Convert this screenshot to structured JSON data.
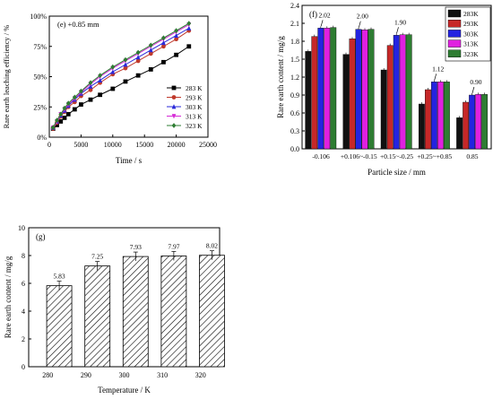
{
  "chart_data": [
    {
      "panel": "(e)",
      "type": "line",
      "title": "(e) +0.85 mm",
      "xlabel": "Time / s",
      "ylabel": "Rare earth leaching efficiency / %",
      "xlim": [
        0,
        25000
      ],
      "ylim": [
        0,
        100
      ],
      "xticks": [
        "0",
        "5000",
        "10000",
        "15000",
        "20000",
        "25000"
      ],
      "yticks": [
        "0%",
        "25%",
        "50%",
        "75%",
        "100%"
      ],
      "legend_position": "bottom-right",
      "series": [
        {
          "name": "283 K",
          "color": "#000000",
          "marker": "square",
          "x": [
            600,
            1200,
            1800,
            2400,
            3000,
            4000,
            5000,
            6500,
            8000,
            10000,
            12000,
            14000,
            16000,
            18000,
            20000,
            22000
          ],
          "y": [
            7,
            10,
            13,
            16,
            19,
            23,
            27,
            31,
            35,
            40,
            46,
            51,
            56,
            62,
            68,
            75
          ]
        },
        {
          "name": "293 K",
          "color": "#c0392b",
          "marker": "circle",
          "x": [
            600,
            1200,
            1800,
            2400,
            3000,
            4000,
            5000,
            6500,
            8000,
            10000,
            12000,
            14000,
            16000,
            18000,
            20000,
            22000
          ],
          "y": [
            7,
            12,
            17,
            21,
            25,
            29,
            34,
            39,
            45,
            52,
            57,
            63,
            69,
            75,
            81,
            88
          ]
        },
        {
          "name": "303 K",
          "color": "#2a2ad9",
          "marker": "triangle-up",
          "x": [
            600,
            1200,
            1800,
            2400,
            3000,
            4000,
            5000,
            6500,
            8000,
            10000,
            12000,
            14000,
            16000,
            18000,
            20000,
            22000
          ],
          "y": [
            8,
            13,
            18,
            22,
            26,
            31,
            36,
            42,
            47,
            54,
            60,
            66,
            72,
            78,
            84,
            90
          ]
        },
        {
          "name": "313 K",
          "color": "#d62ad6",
          "marker": "triangle-down",
          "x": [
            600,
            1200,
            1800,
            2400,
            3000,
            4000,
            5000,
            6500,
            8000,
            10000,
            12000,
            14000,
            16000,
            18000,
            20000,
            22000
          ],
          "y": [
            8,
            13,
            19,
            23,
            27,
            32,
            37,
            44,
            50,
            57,
            63,
            69,
            75,
            81,
            87,
            93
          ]
        },
        {
          "name": "323 K",
          "color": "#2e7d32",
          "marker": "diamond",
          "x": [
            600,
            1200,
            1800,
            2400,
            3000,
            4000,
            5000,
            6500,
            8000,
            10000,
            12000,
            14000,
            16000,
            18000,
            20000,
            22000
          ],
          "y": [
            8,
            14,
            19,
            24,
            28,
            33,
            38,
            45,
            51,
            58,
            64,
            70,
            76,
            82,
            88,
            94
          ]
        }
      ]
    },
    {
      "panel": "(f)",
      "type": "bar",
      "title": "(f)",
      "xlabel": "Particle size / mm",
      "ylabel": "Rare earth content / mg/g",
      "ylim": [
        0,
        2.4
      ],
      "yticks": [
        "0.0",
        "0.3",
        "0.6",
        "0.9",
        "1.2",
        "1.5",
        "1.8",
        "2.1",
        "2.4"
      ],
      "categories": [
        "-0.106",
        "+0.106~-0.15",
        "+0.15~-0.25",
        "+0.25~+0.85",
        "0.85"
      ],
      "legend_position": "top-right",
      "annotations": [
        "2.02",
        "2.00",
        "1.90",
        "1.12",
        "0.90"
      ],
      "annotation_targets": [
        {
          "series": 2,
          "category": 0
        },
        {
          "series": 2,
          "category": 1
        },
        {
          "series": 2,
          "category": 2
        },
        {
          "series": 2,
          "category": 3
        },
        {
          "series": 2,
          "category": 4
        }
      ],
      "series": [
        {
          "name": "283K",
          "color": "#111111",
          "values": [
            1.63,
            1.58,
            1.32,
            0.75,
            0.52
          ]
        },
        {
          "name": "293K",
          "color": "#c62828",
          "values": [
            1.88,
            1.84,
            1.73,
            0.99,
            0.78
          ]
        },
        {
          "name": "303K",
          "color": "#2424e0",
          "values": [
            2.02,
            2.0,
            1.9,
            1.12,
            0.9
          ]
        },
        {
          "name": "313K",
          "color": "#e020e0",
          "values": [
            2.02,
            1.99,
            1.91,
            1.12,
            0.91
          ]
        },
        {
          "name": "323K",
          "color": "#2e7d32",
          "values": [
            2.03,
            2.0,
            1.91,
            1.12,
            0.91
          ]
        }
      ]
    },
    {
      "panel": "(g)",
      "type": "bar",
      "title": "(g)",
      "xlabel": "Temperature / K",
      "ylabel": "Rare earth content / mg/g",
      "ylim": [
        0,
        10
      ],
      "yticks": [
        "0",
        "2",
        "4",
        "6",
        "8",
        "10"
      ],
      "xlim": [
        275,
        325
      ],
      "xticks": [
        "280",
        "290",
        "300",
        "310",
        "320"
      ],
      "x": [
        283,
        293,
        303,
        313,
        323
      ],
      "values": [
        5.83,
        7.25,
        7.93,
        7.97,
        8.02
      ],
      "labels": [
        "5.83",
        "7.25",
        "7.93",
        "7.97",
        "8.02"
      ],
      "fill": "hatched"
    }
  ]
}
